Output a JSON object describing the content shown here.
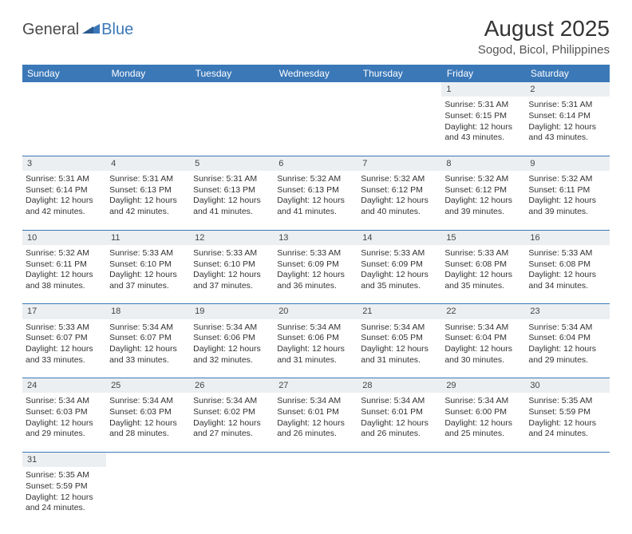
{
  "logo": {
    "part1": "General",
    "part2": "Blue"
  },
  "title": "August 2025",
  "location": "Sogod, Bicol, Philippines",
  "colors": {
    "header_bg": "#3b78b8",
    "header_text": "#ffffff",
    "daynum_bg": "#eceff1",
    "border": "#3b78b8",
    "body_text": "#333333",
    "page_bg": "#ffffff"
  },
  "weekdays": [
    "Sunday",
    "Monday",
    "Tuesday",
    "Wednesday",
    "Thursday",
    "Friday",
    "Saturday"
  ],
  "weeks": [
    [
      null,
      null,
      null,
      null,
      null,
      {
        "day": "1",
        "sunrise": "Sunrise: 5:31 AM",
        "sunset": "Sunset: 6:15 PM",
        "daylight1": "Daylight: 12 hours",
        "daylight2": "and 43 minutes."
      },
      {
        "day": "2",
        "sunrise": "Sunrise: 5:31 AM",
        "sunset": "Sunset: 6:14 PM",
        "daylight1": "Daylight: 12 hours",
        "daylight2": "and 43 minutes."
      }
    ],
    [
      {
        "day": "3",
        "sunrise": "Sunrise: 5:31 AM",
        "sunset": "Sunset: 6:14 PM",
        "daylight1": "Daylight: 12 hours",
        "daylight2": "and 42 minutes."
      },
      {
        "day": "4",
        "sunrise": "Sunrise: 5:31 AM",
        "sunset": "Sunset: 6:13 PM",
        "daylight1": "Daylight: 12 hours",
        "daylight2": "and 42 minutes."
      },
      {
        "day": "5",
        "sunrise": "Sunrise: 5:31 AM",
        "sunset": "Sunset: 6:13 PM",
        "daylight1": "Daylight: 12 hours",
        "daylight2": "and 41 minutes."
      },
      {
        "day": "6",
        "sunrise": "Sunrise: 5:32 AM",
        "sunset": "Sunset: 6:13 PM",
        "daylight1": "Daylight: 12 hours",
        "daylight2": "and 41 minutes."
      },
      {
        "day": "7",
        "sunrise": "Sunrise: 5:32 AM",
        "sunset": "Sunset: 6:12 PM",
        "daylight1": "Daylight: 12 hours",
        "daylight2": "and 40 minutes."
      },
      {
        "day": "8",
        "sunrise": "Sunrise: 5:32 AM",
        "sunset": "Sunset: 6:12 PM",
        "daylight1": "Daylight: 12 hours",
        "daylight2": "and 39 minutes."
      },
      {
        "day": "9",
        "sunrise": "Sunrise: 5:32 AM",
        "sunset": "Sunset: 6:11 PM",
        "daylight1": "Daylight: 12 hours",
        "daylight2": "and 39 minutes."
      }
    ],
    [
      {
        "day": "10",
        "sunrise": "Sunrise: 5:32 AM",
        "sunset": "Sunset: 6:11 PM",
        "daylight1": "Daylight: 12 hours",
        "daylight2": "and 38 minutes."
      },
      {
        "day": "11",
        "sunrise": "Sunrise: 5:33 AM",
        "sunset": "Sunset: 6:10 PM",
        "daylight1": "Daylight: 12 hours",
        "daylight2": "and 37 minutes."
      },
      {
        "day": "12",
        "sunrise": "Sunrise: 5:33 AM",
        "sunset": "Sunset: 6:10 PM",
        "daylight1": "Daylight: 12 hours",
        "daylight2": "and 37 minutes."
      },
      {
        "day": "13",
        "sunrise": "Sunrise: 5:33 AM",
        "sunset": "Sunset: 6:09 PM",
        "daylight1": "Daylight: 12 hours",
        "daylight2": "and 36 minutes."
      },
      {
        "day": "14",
        "sunrise": "Sunrise: 5:33 AM",
        "sunset": "Sunset: 6:09 PM",
        "daylight1": "Daylight: 12 hours",
        "daylight2": "and 35 minutes."
      },
      {
        "day": "15",
        "sunrise": "Sunrise: 5:33 AM",
        "sunset": "Sunset: 6:08 PM",
        "daylight1": "Daylight: 12 hours",
        "daylight2": "and 35 minutes."
      },
      {
        "day": "16",
        "sunrise": "Sunrise: 5:33 AM",
        "sunset": "Sunset: 6:08 PM",
        "daylight1": "Daylight: 12 hours",
        "daylight2": "and 34 minutes."
      }
    ],
    [
      {
        "day": "17",
        "sunrise": "Sunrise: 5:33 AM",
        "sunset": "Sunset: 6:07 PM",
        "daylight1": "Daylight: 12 hours",
        "daylight2": "and 33 minutes."
      },
      {
        "day": "18",
        "sunrise": "Sunrise: 5:34 AM",
        "sunset": "Sunset: 6:07 PM",
        "daylight1": "Daylight: 12 hours",
        "daylight2": "and 33 minutes."
      },
      {
        "day": "19",
        "sunrise": "Sunrise: 5:34 AM",
        "sunset": "Sunset: 6:06 PM",
        "daylight1": "Daylight: 12 hours",
        "daylight2": "and 32 minutes."
      },
      {
        "day": "20",
        "sunrise": "Sunrise: 5:34 AM",
        "sunset": "Sunset: 6:06 PM",
        "daylight1": "Daylight: 12 hours",
        "daylight2": "and 31 minutes."
      },
      {
        "day": "21",
        "sunrise": "Sunrise: 5:34 AM",
        "sunset": "Sunset: 6:05 PM",
        "daylight1": "Daylight: 12 hours",
        "daylight2": "and 31 minutes."
      },
      {
        "day": "22",
        "sunrise": "Sunrise: 5:34 AM",
        "sunset": "Sunset: 6:04 PM",
        "daylight1": "Daylight: 12 hours",
        "daylight2": "and 30 minutes."
      },
      {
        "day": "23",
        "sunrise": "Sunrise: 5:34 AM",
        "sunset": "Sunset: 6:04 PM",
        "daylight1": "Daylight: 12 hours",
        "daylight2": "and 29 minutes."
      }
    ],
    [
      {
        "day": "24",
        "sunrise": "Sunrise: 5:34 AM",
        "sunset": "Sunset: 6:03 PM",
        "daylight1": "Daylight: 12 hours",
        "daylight2": "and 29 minutes."
      },
      {
        "day": "25",
        "sunrise": "Sunrise: 5:34 AM",
        "sunset": "Sunset: 6:03 PM",
        "daylight1": "Daylight: 12 hours",
        "daylight2": "and 28 minutes."
      },
      {
        "day": "26",
        "sunrise": "Sunrise: 5:34 AM",
        "sunset": "Sunset: 6:02 PM",
        "daylight1": "Daylight: 12 hours",
        "daylight2": "and 27 minutes."
      },
      {
        "day": "27",
        "sunrise": "Sunrise: 5:34 AM",
        "sunset": "Sunset: 6:01 PM",
        "daylight1": "Daylight: 12 hours",
        "daylight2": "and 26 minutes."
      },
      {
        "day": "28",
        "sunrise": "Sunrise: 5:34 AM",
        "sunset": "Sunset: 6:01 PM",
        "daylight1": "Daylight: 12 hours",
        "daylight2": "and 26 minutes."
      },
      {
        "day": "29",
        "sunrise": "Sunrise: 5:34 AM",
        "sunset": "Sunset: 6:00 PM",
        "daylight1": "Daylight: 12 hours",
        "daylight2": "and 25 minutes."
      },
      {
        "day": "30",
        "sunrise": "Sunrise: 5:35 AM",
        "sunset": "Sunset: 5:59 PM",
        "daylight1": "Daylight: 12 hours",
        "daylight2": "and 24 minutes."
      }
    ],
    [
      {
        "day": "31",
        "sunrise": "Sunrise: 5:35 AM",
        "sunset": "Sunset: 5:59 PM",
        "daylight1": "Daylight: 12 hours",
        "daylight2": "and 24 minutes."
      },
      null,
      null,
      null,
      null,
      null,
      null
    ]
  ]
}
